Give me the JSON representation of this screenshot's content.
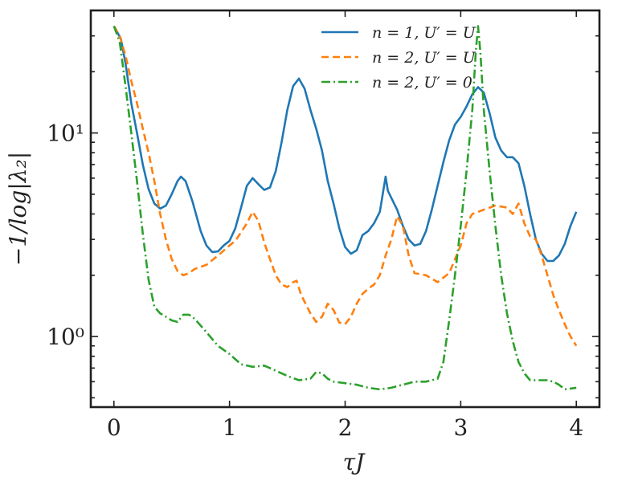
{
  "chart_data": {
    "type": "line",
    "title": "",
    "xlabel": "τJ",
    "ylabel": "−1/log|λ₂|",
    "xlim": [
      -0.2,
      4.2
    ],
    "ylim": [
      0.45,
      40
    ],
    "y_scale": "log",
    "x_ticks": [
      0,
      1,
      2,
      3,
      4
    ],
    "x_tick_labels": [
      "0",
      "1",
      "2",
      "3",
      "4"
    ],
    "y_major_ticks": [
      1,
      10
    ],
    "y_tick_labels": [
      "10⁰",
      "10¹"
    ],
    "grid": false,
    "legend_position": "top-center",
    "series": [
      {
        "name": "n = 1, U′ = U",
        "color": "#1f77b4",
        "dash": "solid",
        "points": [
          [
            0,
            33.5
          ],
          [
            0.06,
            29
          ],
          [
            0.1,
            22
          ],
          [
            0.15,
            14
          ],
          [
            0.2,
            10
          ],
          [
            0.25,
            7
          ],
          [
            0.3,
            5.3
          ],
          [
            0.35,
            4.5
          ],
          [
            0.4,
            4.25
          ],
          [
            0.45,
            4.4
          ],
          [
            0.5,
            5
          ],
          [
            0.55,
            5.8
          ],
          [
            0.58,
            6.1
          ],
          [
            0.62,
            5.8
          ],
          [
            0.68,
            4.6
          ],
          [
            0.75,
            3.3
          ],
          [
            0.8,
            2.8
          ],
          [
            0.85,
            2.6
          ],
          [
            0.9,
            2.62
          ],
          [
            0.95,
            2.8
          ],
          [
            1.0,
            2.95
          ],
          [
            1.05,
            3.4
          ],
          [
            1.1,
            4.3
          ],
          [
            1.15,
            5.5
          ],
          [
            1.2,
            6.0
          ],
          [
            1.25,
            5.6
          ],
          [
            1.3,
            5.25
          ],
          [
            1.35,
            5.4
          ],
          [
            1.4,
            6.5
          ],
          [
            1.45,
            9
          ],
          [
            1.5,
            13
          ],
          [
            1.55,
            17
          ],
          [
            1.6,
            18.5
          ],
          [
            1.65,
            16.5
          ],
          [
            1.7,
            13
          ],
          [
            1.75,
            10.5
          ],
          [
            1.8,
            8.2
          ],
          [
            1.85,
            5.8
          ],
          [
            1.9,
            4.5
          ],
          [
            1.95,
            3.4
          ],
          [
            2.0,
            2.75
          ],
          [
            2.05,
            2.55
          ],
          [
            2.1,
            2.65
          ],
          [
            2.15,
            3.15
          ],
          [
            2.2,
            3.3
          ],
          [
            2.25,
            3.6
          ],
          [
            2.3,
            4.1
          ],
          [
            2.33,
            5.2
          ],
          [
            2.35,
            6.1
          ],
          [
            2.37,
            5.2
          ],
          [
            2.4,
            4.8
          ],
          [
            2.45,
            4.2
          ],
          [
            2.5,
            3.5
          ],
          [
            2.55,
            3.0
          ],
          [
            2.6,
            2.8
          ],
          [
            2.65,
            2.85
          ],
          [
            2.7,
            3.3
          ],
          [
            2.75,
            4.2
          ],
          [
            2.8,
            5.5
          ],
          [
            2.85,
            7.2
          ],
          [
            2.9,
            9.2
          ],
          [
            2.95,
            11
          ],
          [
            3.0,
            12
          ],
          [
            3.05,
            13.5
          ],
          [
            3.1,
            15.5
          ],
          [
            3.15,
            16.8
          ],
          [
            3.2,
            15.8
          ],
          [
            3.25,
            12.5
          ],
          [
            3.3,
            9.5
          ],
          [
            3.35,
            8.2
          ],
          [
            3.4,
            7.6
          ],
          [
            3.45,
            7.6
          ],
          [
            3.5,
            7.1
          ],
          [
            3.55,
            5.5
          ],
          [
            3.6,
            4.0
          ],
          [
            3.65,
            3.0
          ],
          [
            3.7,
            2.55
          ],
          [
            3.75,
            2.35
          ],
          [
            3.8,
            2.35
          ],
          [
            3.85,
            2.5
          ],
          [
            3.9,
            2.85
          ],
          [
            3.95,
            3.5
          ],
          [
            4.0,
            4.1
          ]
        ]
      },
      {
        "name": "n = 2, U′ = U",
        "color": "#ff7f0e",
        "dash": "dashed",
        "points": [
          [
            0,
            33.5
          ],
          [
            0.05,
            30
          ],
          [
            0.1,
            24
          ],
          [
            0.15,
            18
          ],
          [
            0.2,
            14
          ],
          [
            0.25,
            10.5
          ],
          [
            0.3,
            8
          ],
          [
            0.35,
            5.8
          ],
          [
            0.4,
            4.0
          ],
          [
            0.45,
            3.0
          ],
          [
            0.5,
            2.4
          ],
          [
            0.55,
            2.1
          ],
          [
            0.6,
            2.0
          ],
          [
            0.65,
            2.05
          ],
          [
            0.7,
            2.15
          ],
          [
            0.8,
            2.25
          ],
          [
            0.9,
            2.5
          ],
          [
            1.0,
            2.8
          ],
          [
            1.05,
            2.95
          ],
          [
            1.1,
            3.25
          ],
          [
            1.15,
            3.6
          ],
          [
            1.2,
            4.1
          ],
          [
            1.25,
            3.7
          ],
          [
            1.3,
            2.9
          ],
          [
            1.35,
            2.4
          ],
          [
            1.4,
            2.0
          ],
          [
            1.45,
            1.8
          ],
          [
            1.5,
            1.75
          ],
          [
            1.55,
            1.85
          ],
          [
            1.58,
            1.88
          ],
          [
            1.62,
            1.6
          ],
          [
            1.7,
            1.3
          ],
          [
            1.75,
            1.18
          ],
          [
            1.8,
            1.25
          ],
          [
            1.85,
            1.45
          ],
          [
            1.9,
            1.35
          ],
          [
            1.95,
            1.17
          ],
          [
            2.0,
            1.15
          ],
          [
            2.05,
            1.25
          ],
          [
            2.1,
            1.45
          ],
          [
            2.15,
            1.62
          ],
          [
            2.2,
            1.72
          ],
          [
            2.25,
            1.8
          ],
          [
            2.3,
            2.0
          ],
          [
            2.35,
            2.5
          ],
          [
            2.4,
            3.0
          ],
          [
            2.45,
            3.9
          ],
          [
            2.5,
            3.5
          ],
          [
            2.55,
            2.5
          ],
          [
            2.6,
            2.05
          ],
          [
            2.7,
            2.0
          ],
          [
            2.8,
            1.85
          ],
          [
            2.9,
            2.05
          ],
          [
            3.0,
            2.8
          ],
          [
            3.05,
            3.6
          ],
          [
            3.1,
            4.0
          ],
          [
            3.2,
            4.2
          ],
          [
            3.3,
            4.4
          ],
          [
            3.4,
            4.3
          ],
          [
            3.45,
            4.0
          ],
          [
            3.5,
            4.5
          ],
          [
            3.55,
            3.6
          ],
          [
            3.6,
            3.1
          ],
          [
            3.65,
            3.0
          ],
          [
            3.7,
            2.5
          ],
          [
            3.75,
            2.0
          ],
          [
            3.8,
            1.6
          ],
          [
            3.85,
            1.35
          ],
          [
            3.9,
            1.15
          ],
          [
            3.95,
            1.0
          ],
          [
            4.0,
            0.9
          ]
        ]
      },
      {
        "name": "n = 2, U′ = 0",
        "color": "#2ca02c",
        "dash": "dashdot",
        "points": [
          [
            0,
            33.5
          ],
          [
            0.05,
            28
          ],
          [
            0.1,
            17
          ],
          [
            0.15,
            10
          ],
          [
            0.2,
            5.8
          ],
          [
            0.25,
            3.2
          ],
          [
            0.3,
            1.9
          ],
          [
            0.35,
            1.4
          ],
          [
            0.4,
            1.3
          ],
          [
            0.45,
            1.25
          ],
          [
            0.5,
            1.2
          ],
          [
            0.55,
            1.18
          ],
          [
            0.6,
            1.28
          ],
          [
            0.65,
            1.28
          ],
          [
            0.7,
            1.22
          ],
          [
            0.8,
            1.05
          ],
          [
            0.9,
            0.9
          ],
          [
            1.0,
            0.82
          ],
          [
            1.1,
            0.73
          ],
          [
            1.2,
            0.71
          ],
          [
            1.3,
            0.72
          ],
          [
            1.4,
            0.68
          ],
          [
            1.5,
            0.64
          ],
          [
            1.6,
            0.61
          ],
          [
            1.7,
            0.62
          ],
          [
            1.75,
            0.67
          ],
          [
            1.8,
            0.66
          ],
          [
            1.85,
            0.62
          ],
          [
            1.9,
            0.6
          ],
          [
            2.0,
            0.59
          ],
          [
            2.1,
            0.58
          ],
          [
            2.2,
            0.56
          ],
          [
            2.3,
            0.55
          ],
          [
            2.4,
            0.56
          ],
          [
            2.5,
            0.58
          ],
          [
            2.6,
            0.6
          ],
          [
            2.7,
            0.6
          ],
          [
            2.8,
            0.62
          ],
          [
            2.85,
            0.75
          ],
          [
            2.9,
            1.2
          ],
          [
            2.95,
            2.0
          ],
          [
            3.0,
            3.5
          ],
          [
            3.05,
            6.5
          ],
          [
            3.1,
            13
          ],
          [
            3.13,
            25
          ],
          [
            3.15,
            33.5
          ],
          [
            3.17,
            25
          ],
          [
            3.2,
            13
          ],
          [
            3.25,
            6.5
          ],
          [
            3.3,
            3.5
          ],
          [
            3.35,
            2.0
          ],
          [
            3.4,
            1.3
          ],
          [
            3.45,
            0.95
          ],
          [
            3.5,
            0.75
          ],
          [
            3.55,
            0.66
          ],
          [
            3.6,
            0.61
          ],
          [
            3.7,
            0.61
          ],
          [
            3.75,
            0.61
          ],
          [
            3.8,
            0.6
          ],
          [
            3.85,
            0.58
          ],
          [
            3.9,
            0.55
          ],
          [
            4.0,
            0.56
          ]
        ]
      }
    ]
  }
}
